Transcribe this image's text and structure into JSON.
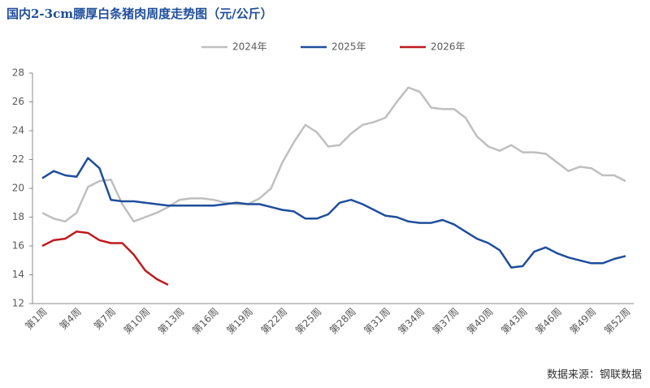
{
  "chart_data": {
    "type": "line",
    "title": "国内2-3cm膘厚白条猪肉周度走势图（元/公斤）",
    "source": "数据来源：钢联数据",
    "categories": [
      "第1周",
      null,
      null,
      "第4周",
      null,
      null,
      "第7周",
      null,
      null,
      "第10周",
      null,
      null,
      "第13周",
      null,
      null,
      "第16周",
      null,
      null,
      "第19周",
      null,
      null,
      "第22周",
      null,
      null,
      "第25周",
      null,
      null,
      "第28周",
      null,
      null,
      "第31周",
      null,
      null,
      "第34周",
      null,
      null,
      "第37周",
      null,
      null,
      "第40周",
      null,
      null,
      "第43周",
      null,
      null,
      "第46周",
      null,
      null,
      "第49周",
      null,
      null,
      "第52周"
    ],
    "series": [
      {
        "name": "2024年",
        "color": "#bfbfbf",
        "values": [
          18.3,
          17.9,
          17.7,
          18.3,
          20.1,
          20.5,
          20.6,
          18.9,
          17.7,
          18.0,
          18.3,
          18.7,
          19.2,
          19.3,
          19.3,
          19.2,
          19.0,
          18.9,
          18.9,
          19.3,
          20.0,
          21.8,
          23.2,
          24.4,
          23.9,
          22.9,
          23.0,
          23.8,
          24.4,
          24.6,
          24.9,
          26.0,
          27.0,
          26.7,
          25.6,
          25.5,
          25.5,
          24.9,
          23.6,
          22.9,
          22.6,
          23.0,
          22.5,
          22.5,
          22.4,
          21.8,
          21.2,
          21.5,
          21.4,
          20.9,
          20.9,
          20.5
        ]
      },
      {
        "name": "2025年",
        "color": "#1f4e9c",
        "values": [
          20.7,
          21.2,
          20.9,
          20.8,
          22.1,
          21.4,
          19.2,
          19.1,
          19.1,
          19.0,
          18.9,
          18.8,
          18.8,
          18.8,
          18.8,
          18.8,
          18.9,
          19.0,
          18.9,
          18.9,
          18.7,
          18.5,
          18.4,
          17.9,
          17.9,
          18.2,
          19.0,
          19.2,
          18.9,
          18.5,
          18.1,
          18.0,
          17.7,
          17.6,
          17.6,
          17.8,
          17.5,
          17.0,
          16.5,
          16.2,
          15.7,
          14.5,
          14.6,
          15.6,
          15.9,
          15.5,
          15.2,
          15.0,
          14.8,
          14.8,
          15.1,
          15.3
        ]
      },
      {
        "name": "2026年",
        "color": "#c0191e",
        "values": [
          16.0,
          16.4,
          16.5,
          17.0,
          16.9,
          16.4,
          16.2,
          16.2,
          15.4,
          14.3,
          13.7,
          13.3,
          null,
          null,
          null,
          null,
          null,
          null,
          null,
          null,
          null,
          null,
          null,
          null,
          null,
          null,
          null,
          null,
          null,
          null,
          null,
          null,
          null,
          null,
          null,
          null,
          null,
          null,
          null,
          null,
          null,
          null,
          null,
          null,
          null,
          null,
          null,
          null,
          null,
          null,
          null,
          null
        ]
      }
    ],
    "ylim": [
      12,
      28
    ],
    "yticks": [
      12,
      14,
      16,
      18,
      20,
      22,
      24,
      26,
      28
    ],
    "grid": false
  }
}
